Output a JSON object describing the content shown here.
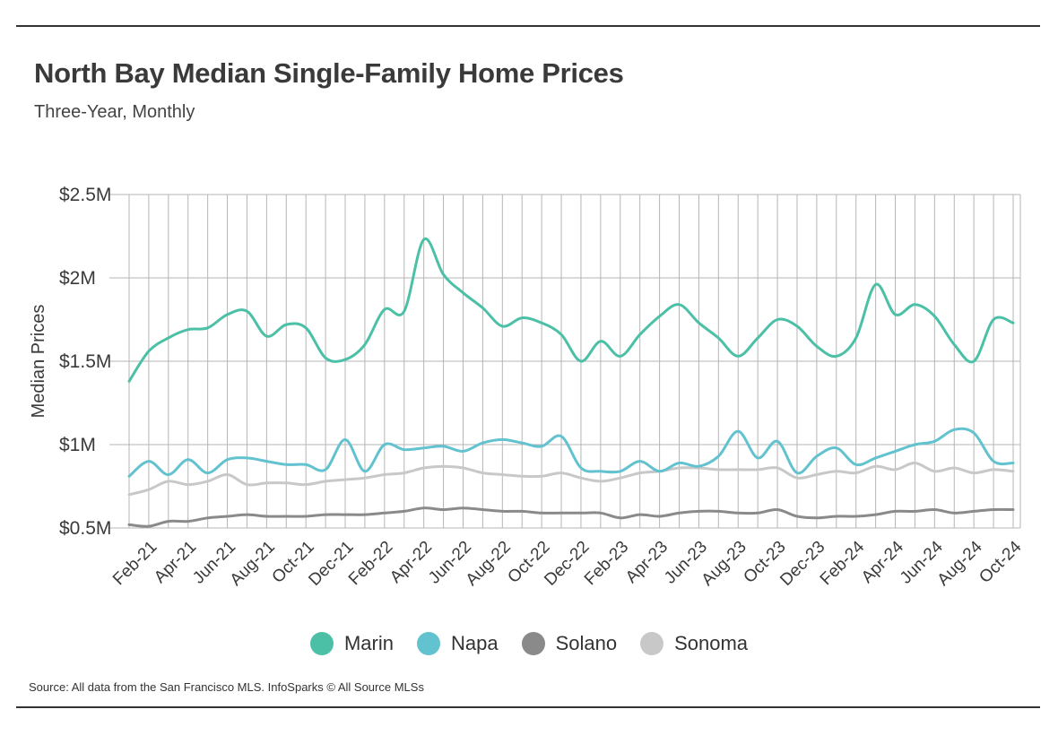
{
  "header": {
    "title": "North Bay Median Single-Family Home Prices",
    "subtitle": "Three-Year, Monthly"
  },
  "source_note": "Source:  All data from the San Francisco MLS. InfoSparks © All Source MLSs",
  "colors": {
    "Marin": "#4cc0a6",
    "Napa": "#62c2cf",
    "Solano": "#8a8a8a",
    "Sonoma": "#c8c8c8",
    "grid": "#b5b5b5"
  },
  "chart_data": {
    "type": "line",
    "title": "North Bay Median Single-Family Home Prices",
    "subtitle": "Three-Year, Monthly",
    "xlabel": "",
    "ylabel": "Median Prices",
    "ylim": [
      0.5,
      2.5
    ],
    "y_unit": "$M",
    "y_ticks": [
      {
        "value": 0.5,
        "label": "$0.5M"
      },
      {
        "value": 1.0,
        "label": "$1M"
      },
      {
        "value": 1.5,
        "label": "$1.5M"
      },
      {
        "value": 2.0,
        "label": "$2M"
      },
      {
        "value": 2.5,
        "label": "$2.5M"
      }
    ],
    "grid": true,
    "legend_position": "bottom",
    "x": [
      "Jan-21",
      "Feb-21",
      "Mar-21",
      "Apr-21",
      "May-21",
      "Jun-21",
      "Jul-21",
      "Aug-21",
      "Sep-21",
      "Oct-21",
      "Nov-21",
      "Dec-21",
      "Jan-22",
      "Feb-22",
      "Mar-22",
      "Apr-22",
      "May-22",
      "Jun-22",
      "Jul-22",
      "Aug-22",
      "Sep-22",
      "Oct-22",
      "Nov-22",
      "Dec-22",
      "Jan-23",
      "Feb-23",
      "Mar-23",
      "Apr-23",
      "May-23",
      "Jun-23",
      "Jul-23",
      "Aug-23",
      "Sep-23",
      "Oct-23",
      "Nov-23",
      "Dec-23",
      "Jan-24",
      "Feb-24",
      "Mar-24",
      "Apr-24",
      "May-24",
      "Jun-24",
      "Jul-24",
      "Aug-24",
      "Sep-24",
      "Oct-24"
    ],
    "x_tick_labels": [
      "Feb-21",
      "Apr-21",
      "Jun-21",
      "Aug-21",
      "Oct-21",
      "Dec-21",
      "Feb-22",
      "Apr-22",
      "Jun-22",
      "Aug-22",
      "Oct-22",
      "Dec-22",
      "Feb-23",
      "Apr-23",
      "Jun-23",
      "Aug-23",
      "Oct-23",
      "Dec-23",
      "Feb-24",
      "Apr-24",
      "Jun-24",
      "Aug-24",
      "Oct-24"
    ],
    "series": [
      {
        "name": "Marin",
        "values": [
          1.38,
          1.56,
          1.64,
          1.69,
          1.7,
          1.78,
          1.8,
          1.65,
          1.72,
          1.7,
          1.52,
          1.51,
          1.6,
          1.81,
          1.8,
          2.23,
          2.02,
          1.91,
          1.82,
          1.71,
          1.76,
          1.73,
          1.66,
          1.5,
          1.62,
          1.53,
          1.66,
          1.77,
          1.84,
          1.73,
          1.64,
          1.53,
          1.64,
          1.75,
          1.71,
          1.59,
          1.53,
          1.64,
          1.96,
          1.78,
          1.84,
          1.77,
          1.6,
          1.5,
          1.75,
          1.73
        ]
      },
      {
        "name": "Napa",
        "values": [
          0.81,
          0.9,
          0.82,
          0.91,
          0.83,
          0.91,
          0.92,
          0.9,
          0.88,
          0.88,
          0.85,
          1.03,
          0.84,
          1.0,
          0.97,
          0.98,
          0.99,
          0.96,
          1.01,
          1.03,
          1.01,
          0.99,
          1.05,
          0.86,
          0.84,
          0.84,
          0.9,
          0.84,
          0.89,
          0.87,
          0.93,
          1.08,
          0.92,
          1.02,
          0.83,
          0.93,
          0.98,
          0.88,
          0.92,
          0.96,
          1.0,
          1.02,
          1.09,
          1.07,
          0.9,
          0.89
        ]
      },
      {
        "name": "Solano",
        "values": [
          0.52,
          0.51,
          0.54,
          0.54,
          0.56,
          0.57,
          0.58,
          0.57,
          0.57,
          0.57,
          0.58,
          0.58,
          0.58,
          0.59,
          0.6,
          0.62,
          0.61,
          0.62,
          0.61,
          0.6,
          0.6,
          0.59,
          0.59,
          0.59,
          0.59,
          0.56,
          0.58,
          0.57,
          0.59,
          0.6,
          0.6,
          0.59,
          0.59,
          0.61,
          0.57,
          0.56,
          0.57,
          0.57,
          0.58,
          0.6,
          0.6,
          0.61,
          0.59,
          0.6,
          0.61,
          0.61
        ]
      },
      {
        "name": "Sonoma",
        "values": [
          0.7,
          0.73,
          0.78,
          0.76,
          0.78,
          0.82,
          0.76,
          0.77,
          0.77,
          0.76,
          0.78,
          0.79,
          0.8,
          0.82,
          0.83,
          0.86,
          0.87,
          0.86,
          0.83,
          0.82,
          0.81,
          0.81,
          0.83,
          0.8,
          0.78,
          0.8,
          0.83,
          0.84,
          0.86,
          0.86,
          0.85,
          0.85,
          0.85,
          0.86,
          0.8,
          0.82,
          0.84,
          0.83,
          0.87,
          0.85,
          0.89,
          0.84,
          0.86,
          0.83,
          0.85,
          0.84
        ]
      }
    ]
  }
}
